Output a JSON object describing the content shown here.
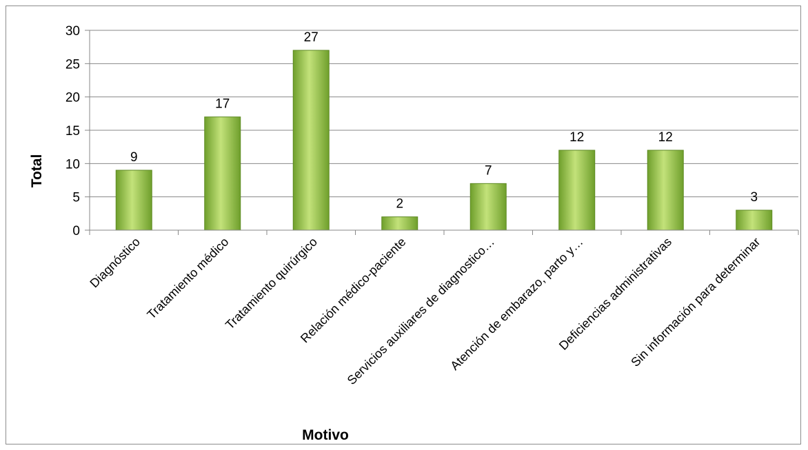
{
  "chart_data": {
    "type": "bar",
    "title": "",
    "xlabel": "Motivo",
    "ylabel": "Total",
    "ylim": [
      0,
      30
    ],
    "yticks": [
      0,
      5,
      10,
      15,
      20,
      25,
      30
    ],
    "grid": true,
    "legend": "none",
    "categories": [
      "Diagnóstico",
      "Tratamiento médico",
      "Tratamiento quirúrgico",
      "Relación médico-paciente",
      "Servicios auxiliares de diagnostico…",
      "Atención de embarazo, parto y…",
      "Deficiencias administrativas",
      "Sin información para determinar"
    ],
    "values": [
      9,
      17,
      27,
      2,
      7,
      12,
      12,
      3
    ],
    "data_labels": [
      "9",
      "17",
      "27",
      "2",
      "7",
      "12",
      "12",
      "3"
    ],
    "colors": {
      "bar": "#8dbf3f",
      "bar_light": "#c7e57e",
      "bar_dark": "#5e8a22",
      "grid": "#878787",
      "axis": "#878787"
    }
  }
}
